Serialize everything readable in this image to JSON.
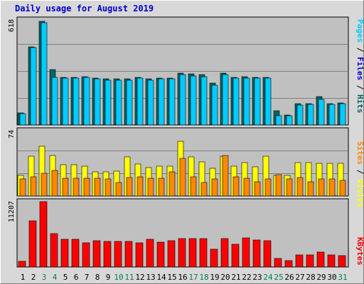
{
  "chart_data": {
    "type": "bar",
    "title": "Daily usage for August 2019",
    "categories": [
      "1",
      "2",
      "3",
      "4",
      "5",
      "6",
      "7",
      "8",
      "9",
      "10",
      "11",
      "12",
      "13",
      "14",
      "15",
      "16",
      "17",
      "18",
      "19",
      "20",
      "21",
      "22",
      "23",
      "24",
      "25",
      "26",
      "27",
      "28",
      "29",
      "30",
      "31"
    ],
    "weekend_days": [
      "3",
      "4",
      "10",
      "11",
      "17",
      "18",
      "24",
      "25",
      "31"
    ],
    "colors": {
      "hits": "#006666",
      "files": "#00ccff",
      "sites": "#ff8800",
      "visits": "#ffff00",
      "kbytes": "#ff0000",
      "weekday": "#000000",
      "weekend": "#00805a",
      "plot_bg": "#c0c0c0",
      "frame_bg": "#d8d8d8"
    },
    "panels": [
      {
        "id": "pages-files-hits",
        "ymax_label": "618",
        "ylim": [
          0,
          618
        ],
        "grid": true,
        "legend": {
          "pages": "Pages",
          "sep1": " / ",
          "files": "Files",
          "sep2": " / ",
          "hits": "Hits"
        },
        "series": [
          {
            "name": "Hits",
            "values": [
              70,
              460,
              610,
              325,
              280,
              280,
              285,
              275,
              270,
              270,
              270,
              280,
              270,
              275,
              275,
              305,
              300,
              295,
              245,
              305,
              280,
              285,
              280,
              280,
              85,
              60,
              125,
              125,
              165,
              125,
              130
            ]
          },
          {
            "name": "Files",
            "values": [
              65,
              455,
              600,
              280,
              275,
              275,
              280,
              270,
              265,
              265,
              265,
              275,
              265,
              270,
              270,
              295,
              290,
              285,
              235,
              295,
              275,
              275,
              275,
              275,
              55,
              55,
              115,
              120,
              150,
              120,
              125
            ]
          }
        ]
      },
      {
        "id": "sites-visits",
        "ymax_label": "74",
        "ylim": [
          0,
          74
        ],
        "grid": true,
        "legend": {
          "sites": "Sites",
          "sep": " / ",
          "visits": "Visits"
        },
        "series": [
          {
            "name": "Visits",
            "values": [
              23,
              45,
              56,
              46,
              35,
              35,
              34,
              27,
              27,
              28,
              44,
              36,
              32,
              34,
              34,
              62,
              44,
              39,
              31,
              45,
              34,
              38,
              33,
              45,
              23,
              23,
              38,
              38,
              37,
              37,
              37
            ]
          },
          {
            "name": "Sites",
            "values": [
              19,
              22,
              26,
              29,
              20,
              20,
              20,
              20,
              19,
              15,
              21,
              22,
              20,
              20,
              27,
              43,
              22,
              15,
              19,
              46,
              22,
              20,
              16,
              19,
              24,
              19,
              21,
              16,
              19,
              19,
              18
            ]
          }
        ]
      },
      {
        "id": "kbytes",
        "ymax_label": "11207",
        "ylim": [
          0,
          11207
        ],
        "grid": false,
        "legend": {
          "kbytes": "KBytes"
        },
        "series": [
          {
            "name": "KBytes",
            "values": [
              1000,
              7900,
              11207,
              5700,
              4700,
              4700,
              4200,
              4500,
              4400,
              4400,
              4400,
              4200,
              4700,
              4300,
              4500,
              4900,
              4900,
              4900,
              3000,
              4900,
              3900,
              5000,
              4600,
              4500,
              1500,
              1100,
              2100,
              2100,
              2600,
              2100,
              1900
            ]
          }
        ]
      }
    ]
  }
}
